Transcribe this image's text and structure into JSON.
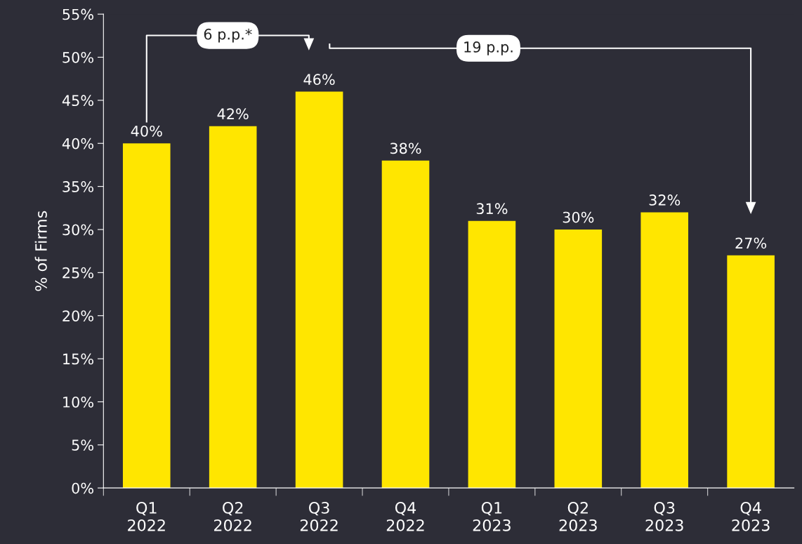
{
  "chart_data": {
    "type": "bar",
    "ylabel": "% of Firms",
    "categories": [
      "Q1\n2022",
      "Q2\n2022",
      "Q3\n2022",
      "Q4\n2022",
      "Q1\n2023",
      "Q2\n2023",
      "Q3\n2023",
      "Q4\n2023"
    ],
    "values": [
      40,
      42,
      46,
      38,
      31,
      30,
      32,
      27
    ],
    "value_labels": [
      "40%",
      "42%",
      "46%",
      "38%",
      "31%",
      "30%",
      "32%",
      "27%"
    ],
    "color": "#ffe600",
    "ylim": [
      0,
      55
    ],
    "yticks": [
      {
        "value": 0,
        "label": "0%"
      },
      {
        "value": 5,
        "label": "5%"
      },
      {
        "value": 10,
        "label": "10%"
      },
      {
        "value": 15,
        "label": "15%"
      },
      {
        "value": 20,
        "label": "20%"
      },
      {
        "value": 25,
        "label": "25%"
      },
      {
        "value": 30,
        "label": "30%"
      },
      {
        "value": 35,
        "label": "35%"
      },
      {
        "value": 40,
        "label": "40%"
      },
      {
        "value": 45,
        "label": "45%"
      },
      {
        "value": 50,
        "label": "50%"
      },
      {
        "value": 55,
        "label": "55%"
      }
    ],
    "annotations": [
      "6 p.p.*",
      "19 p.p."
    ],
    "grid": false,
    "legend": false
  }
}
